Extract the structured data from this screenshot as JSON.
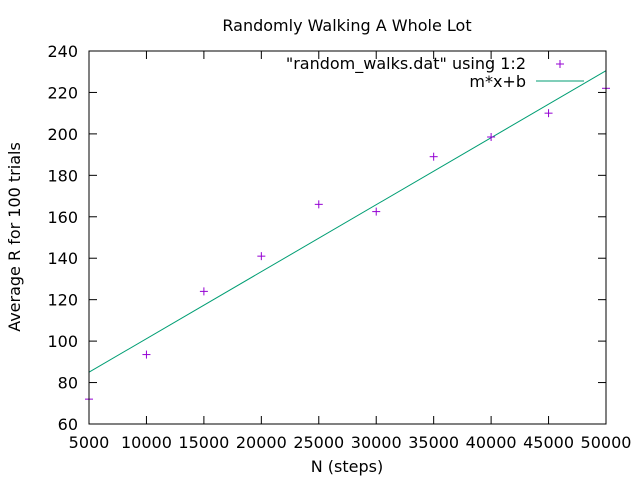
{
  "chart_data": {
    "type": "scatter",
    "title": "Randomly Walking A Whole Lot",
    "xlabel": "N (steps)",
    "ylabel": "Average R for 100 trials",
    "xlim": [
      5000,
      50000
    ],
    "ylim": [
      60,
      240
    ],
    "xticks": [
      5000,
      10000,
      15000,
      20000,
      25000,
      30000,
      35000,
      40000,
      45000,
      50000
    ],
    "yticks": [
      60,
      80,
      100,
      120,
      140,
      160,
      180,
      200,
      220,
      240
    ],
    "grid": false,
    "legend_position": "top-right",
    "series": [
      {
        "name": "\"random_walks.dat\" using 1:2",
        "kind": "points",
        "marker": "+",
        "color": "#9400d3",
        "x": [
          5000,
          10000,
          15000,
          20000,
          25000,
          30000,
          35000,
          40000,
          45000,
          50000
        ],
        "y": [
          72,
          93.5,
          124,
          141,
          166,
          162.5,
          189,
          198.5,
          210,
          222
        ]
      },
      {
        "name": "m*x+b",
        "kind": "line",
        "color": "#009e73",
        "x": [
          5000,
          50000
        ],
        "y": [
          85,
          230.5
        ]
      }
    ]
  }
}
